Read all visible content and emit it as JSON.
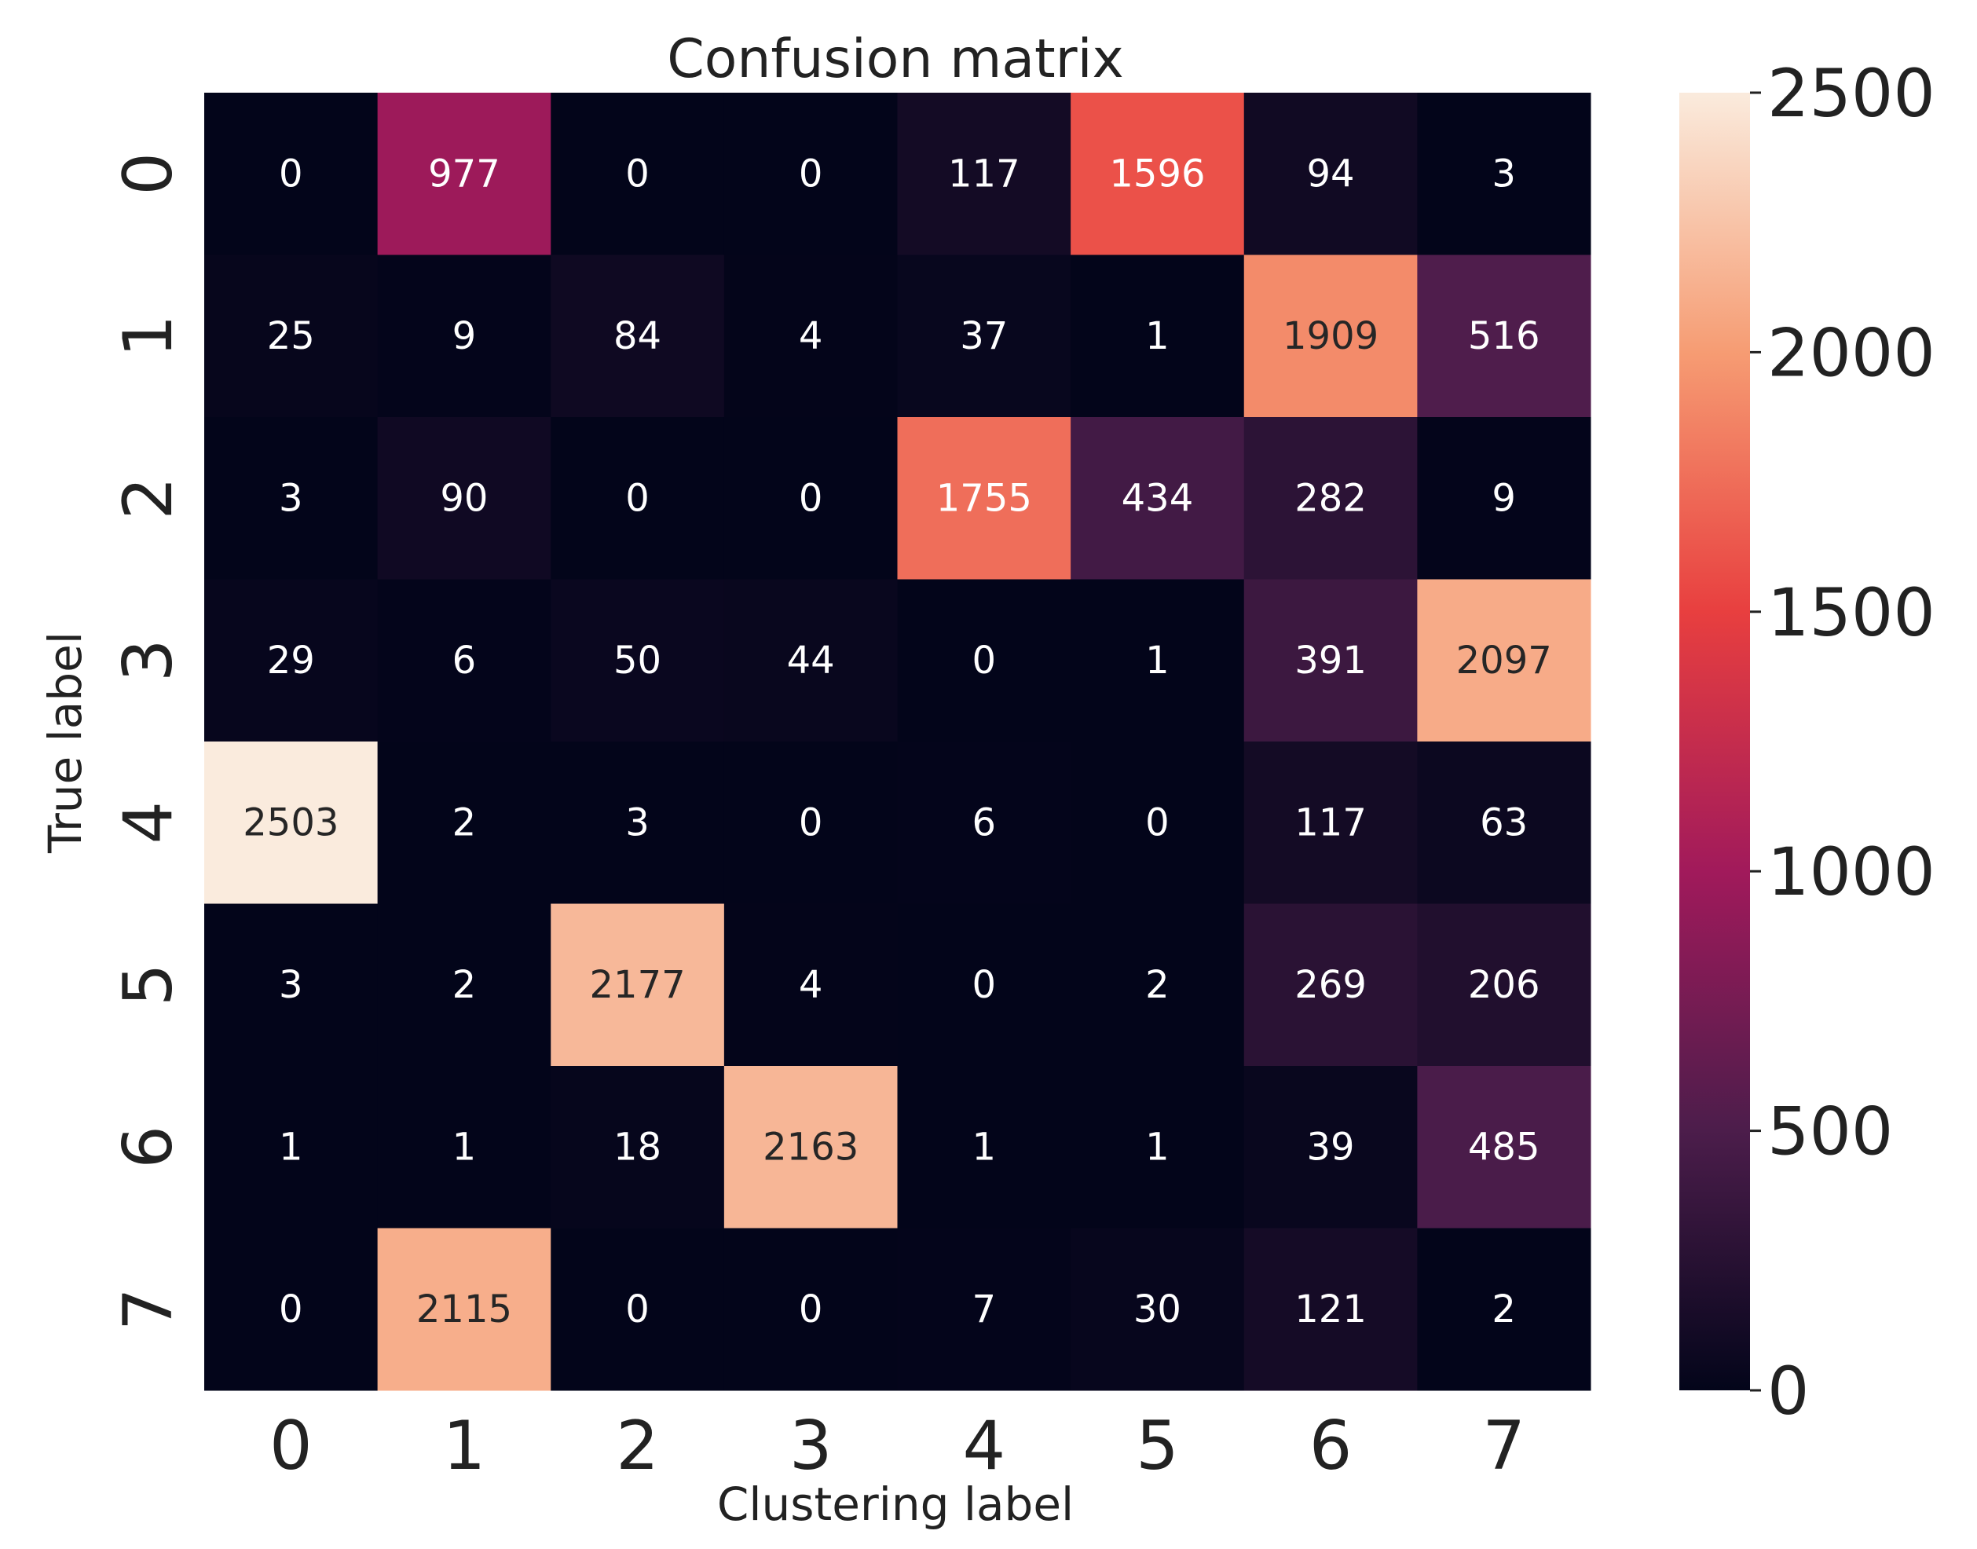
{
  "chart_data": {
    "type": "heatmap",
    "title": "Confusion matrix",
    "xlabel": "Clustering label",
    "ylabel": "True label",
    "x_categories": [
      "0",
      "1",
      "2",
      "3",
      "4",
      "5",
      "6",
      "7"
    ],
    "y_categories": [
      "0",
      "1",
      "2",
      "3",
      "4",
      "5",
      "6",
      "7"
    ],
    "values": [
      [
        0,
        977,
        0,
        0,
        117,
        1596,
        94,
        3
      ],
      [
        25,
        9,
        84,
        4,
        37,
        1,
        1909,
        516
      ],
      [
        3,
        90,
        0,
        0,
        1755,
        434,
        282,
        9
      ],
      [
        29,
        6,
        50,
        44,
        0,
        1,
        391,
        2097
      ],
      [
        2503,
        2,
        3,
        0,
        6,
        0,
        117,
        63
      ],
      [
        3,
        2,
        2177,
        4,
        0,
        2,
        269,
        206
      ],
      [
        1,
        1,
        18,
        2163,
        1,
        1,
        39,
        485
      ],
      [
        0,
        2115,
        0,
        0,
        7,
        30,
        121,
        2
      ]
    ],
    "colorbar": {
      "min": 0,
      "max": 2500,
      "ticks": [
        0,
        500,
        1000,
        1500,
        2000,
        2500
      ],
      "tick_labels": [
        "0",
        "500",
        "1000",
        "1500",
        "2000",
        "2500"
      ]
    },
    "colormap": "rocket",
    "colormap_stops": [
      "#03051a",
      "#4c1d4b",
      "#a11a5b",
      "#e83f3f",
      "#f69c73",
      "#faebdd"
    ]
  }
}
